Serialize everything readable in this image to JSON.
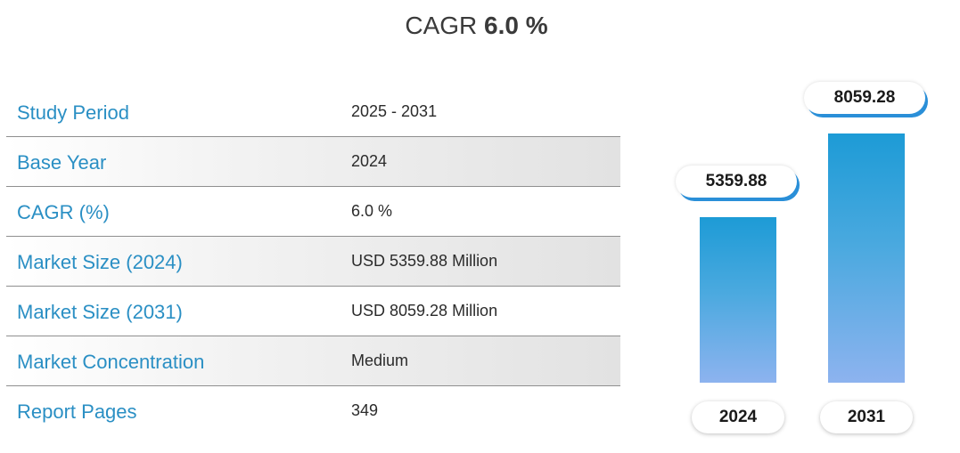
{
  "header": {
    "cagr_label": "CAGR",
    "cagr_value": "6.0 %"
  },
  "table": {
    "rows": [
      {
        "label": "Study Period",
        "value": "2025 - 2031"
      },
      {
        "label": "Base Year",
        "value": "2024"
      },
      {
        "label": "CAGR (%)",
        "value": "6.0 %"
      },
      {
        "label": "Market Size (2024)",
        "value": "USD 5359.88 Million"
      },
      {
        "label": "Market Size (2031)",
        "value": "USD 8059.28 Million"
      },
      {
        "label": "Market Concentration",
        "value": "Medium"
      },
      {
        "label": "Report Pages",
        "value": "349"
      }
    ]
  },
  "colors": {
    "label_blue": "#2a8fc4",
    "bar_top": "#1d9bd6",
    "bar_bottom": "#8db3ef",
    "pill_shadow": "#2a8fd8"
  },
  "chart_data": {
    "type": "bar",
    "categories": [
      "2024",
      "2031"
    ],
    "values": [
      5359.88,
      8059.28
    ],
    "value_labels": [
      "5359.88",
      "8059.28"
    ],
    "title": "",
    "xlabel": "",
    "ylabel": "",
    "ylim": [
      0,
      8059.28
    ],
    "grid": false
  }
}
